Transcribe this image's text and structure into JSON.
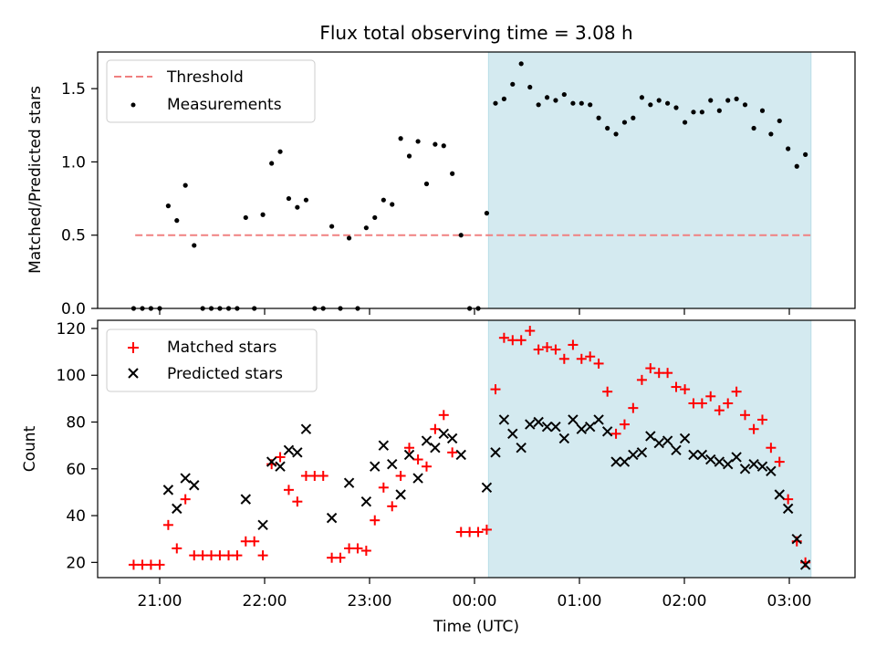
{
  "figure": {
    "title": "Flux total observing time = 3.08 h",
    "xlabel": "Time (UTC)",
    "x_ticks": [
      "21:00",
      "22:00",
      "23:00",
      "00:00",
      "01:00",
      "02:00",
      "03:00"
    ],
    "x_tick_minutes": [
      180,
      240,
      300,
      360,
      420,
      480,
      540
    ]
  },
  "chart_data": [
    {
      "type": "scatter",
      "panel": "top",
      "ylabel": "Matched/Predicted stars",
      "ylim": [
        0,
        1.75
      ],
      "y_ticks": [
        0.0,
        0.5,
        1.0,
        1.5
      ],
      "y_tick_labels": [
        "0.0",
        "0.5",
        "1.0",
        "1.5"
      ],
      "x_unit": "minutes after 18:00 UTC",
      "legend_position": "upper-left",
      "highlight_span": {
        "x_start": 368.0,
        "x_end": 552.4,
        "color": "#d4eaf0"
      },
      "threshold": {
        "name": "Threshold",
        "value": 0.5,
        "x_start": 166.0,
        "x_end": 552.4,
        "color": "#f08080"
      },
      "series": [
        {
          "name": "Measurements",
          "color": "#000000",
          "points": [
            [
              165.1,
              0.0
            ],
            [
              170.1,
              0.0
            ],
            [
              175.0,
              0.0
            ],
            [
              180.0,
              0.0
            ],
            [
              184.9,
              0.7
            ],
            [
              189.8,
              0.6
            ],
            [
              194.7,
              0.84
            ],
            [
              199.7,
              0.43
            ],
            [
              204.6,
              0.0
            ],
            [
              209.5,
              0.0
            ],
            [
              214.4,
              0.0
            ],
            [
              219.4,
              0.0
            ],
            [
              224.3,
              0.0
            ],
            [
              229.2,
              0.62
            ],
            [
              234.1,
              0.0
            ],
            [
              239.0,
              0.64
            ],
            [
              244.0,
              0.99
            ],
            [
              248.9,
              1.07
            ],
            [
              253.8,
              0.75
            ],
            [
              258.7,
              0.69
            ],
            [
              263.7,
              0.74
            ],
            [
              268.6,
              0.0
            ],
            [
              273.5,
              0.0
            ],
            [
              278.4,
              0.56
            ],
            [
              283.3,
              0.0
            ],
            [
              288.3,
              0.48
            ],
            [
              293.2,
              0.0
            ],
            [
              298.1,
              0.55
            ],
            [
              303.0,
              0.62
            ],
            [
              308.0,
              0.74
            ],
            [
              312.9,
              0.71
            ],
            [
              317.8,
              1.16
            ],
            [
              322.7,
              1.04
            ],
            [
              327.7,
              1.14
            ],
            [
              332.6,
              0.85
            ],
            [
              337.5,
              1.12
            ],
            [
              342.4,
              1.11
            ],
            [
              347.3,
              0.92
            ],
            [
              352.3,
              0.5
            ],
            [
              357.2,
              0.0
            ],
            [
              362.1,
              0.0
            ],
            [
              367.0,
              0.65
            ],
            [
              372.0,
              1.4
            ],
            [
              376.9,
              1.43
            ],
            [
              381.8,
              1.53
            ],
            [
              386.7,
              1.67
            ],
            [
              391.7,
              1.51
            ],
            [
              396.6,
              1.39
            ],
            [
              401.5,
              1.44
            ],
            [
              406.4,
              1.42
            ],
            [
              411.3,
              1.46
            ],
            [
              416.3,
              1.4
            ],
            [
              421.2,
              1.4
            ],
            [
              426.1,
              1.39
            ],
            [
              431.0,
              1.3
            ],
            [
              436.0,
              1.23
            ],
            [
              440.9,
              1.19
            ],
            [
              445.8,
              1.27
            ],
            [
              450.7,
              1.3
            ],
            [
              455.7,
              1.44
            ],
            [
              460.6,
              1.39
            ],
            [
              465.5,
              1.42
            ],
            [
              470.4,
              1.4
            ],
            [
              475.3,
              1.37
            ],
            [
              480.3,
              1.27
            ],
            [
              485.2,
              1.34
            ],
            [
              490.1,
              1.34
            ],
            [
              495.0,
              1.42
            ],
            [
              500.0,
              1.35
            ],
            [
              504.9,
              1.42
            ],
            [
              509.8,
              1.43
            ],
            [
              514.7,
              1.39
            ],
            [
              519.7,
              1.23
            ],
            [
              524.6,
              1.35
            ],
            [
              529.5,
              1.19
            ],
            [
              534.4,
              1.28
            ],
            [
              539.3,
              1.09
            ],
            [
              544.3,
              0.97
            ],
            [
              549.2,
              1.05
            ]
          ]
        }
      ]
    },
    {
      "type": "scatter",
      "panel": "bottom",
      "ylabel": "Count",
      "ylim": [
        13.5,
        123.5
      ],
      "y_ticks": [
        20,
        40,
        60,
        80,
        100,
        120
      ],
      "y_tick_labels": [
        "20",
        "40",
        "60",
        "80",
        "100",
        "120"
      ],
      "x_unit": "minutes after 18:00 UTC",
      "legend_position": "upper-left",
      "highlight_span": {
        "x_start": 368.0,
        "x_end": 552.4,
        "color": "#d4eaf0"
      },
      "series": [
        {
          "name": "Matched stars",
          "marker": "+",
          "color": "#ff0000",
          "points": [
            [
              165.1,
              19
            ],
            [
              170.1,
              19
            ],
            [
              175.0,
              19
            ],
            [
              180.0,
              19
            ],
            [
              184.9,
              36
            ],
            [
              189.8,
              26
            ],
            [
              194.7,
              47
            ],
            [
              199.7,
              23
            ],
            [
              204.6,
              23
            ],
            [
              209.5,
              23
            ],
            [
              214.4,
              23
            ],
            [
              219.4,
              23
            ],
            [
              224.3,
              23
            ],
            [
              229.2,
              29
            ],
            [
              234.1,
              29
            ],
            [
              239.0,
              23
            ],
            [
              244.0,
              62
            ],
            [
              248.9,
              65
            ],
            [
              253.8,
              51
            ],
            [
              258.7,
              46
            ],
            [
              263.7,
              57
            ],
            [
              268.6,
              57
            ],
            [
              273.5,
              57
            ],
            [
              278.4,
              22
            ],
            [
              283.3,
              22
            ],
            [
              288.3,
              26
            ],
            [
              293.2,
              26
            ],
            [
              298.1,
              25
            ],
            [
              303.0,
              38
            ],
            [
              308.0,
              52
            ],
            [
              312.9,
              44
            ],
            [
              317.8,
              57
            ],
            [
              322.7,
              69
            ],
            [
              327.7,
              64
            ],
            [
              332.6,
              61
            ],
            [
              337.5,
              77
            ],
            [
              342.4,
              83
            ],
            [
              347.3,
              67
            ],
            [
              352.3,
              33
            ],
            [
              357.2,
              33
            ],
            [
              362.1,
              33
            ],
            [
              367.0,
              34
            ],
            [
              372.0,
              94
            ],
            [
              376.9,
              116
            ],
            [
              381.8,
              115
            ],
            [
              386.7,
              115
            ],
            [
              391.7,
              119
            ],
            [
              396.6,
              111
            ],
            [
              401.5,
              112
            ],
            [
              406.4,
              111
            ],
            [
              411.3,
              107
            ],
            [
              416.3,
              113
            ],
            [
              421.2,
              107
            ],
            [
              426.1,
              108
            ],
            [
              431.0,
              105
            ],
            [
              436.0,
              93
            ],
            [
              440.9,
              75
            ],
            [
              445.8,
              79
            ],
            [
              450.7,
              86
            ],
            [
              455.7,
              98
            ],
            [
              460.6,
              103
            ],
            [
              465.5,
              101
            ],
            [
              470.4,
              101
            ],
            [
              475.3,
              95
            ],
            [
              480.3,
              94
            ],
            [
              485.2,
              88
            ],
            [
              490.1,
              88
            ],
            [
              495.0,
              91
            ],
            [
              500.0,
              85
            ],
            [
              504.9,
              88
            ],
            [
              509.8,
              93
            ],
            [
              514.7,
              83
            ],
            [
              519.7,
              77
            ],
            [
              524.6,
              81
            ],
            [
              529.5,
              69
            ],
            [
              534.4,
              63
            ],
            [
              539.3,
              47
            ],
            [
              544.3,
              29
            ],
            [
              549.2,
              20
            ]
          ]
        },
        {
          "name": "Predicted stars",
          "marker": "x",
          "color": "#000000",
          "points": [
            [
              184.9,
              51
            ],
            [
              189.8,
              43
            ],
            [
              194.7,
              56
            ],
            [
              199.7,
              53
            ],
            [
              229.2,
              47
            ],
            [
              239.0,
              36
            ],
            [
              244.0,
              63
            ],
            [
              248.9,
              61
            ],
            [
              253.8,
              68
            ],
            [
              258.7,
              67
            ],
            [
              263.7,
              77
            ],
            [
              278.4,
              39
            ],
            [
              288.3,
              54
            ],
            [
              298.1,
              46
            ],
            [
              303.0,
              61
            ],
            [
              308.0,
              70
            ],
            [
              312.9,
              62
            ],
            [
              317.8,
              49
            ],
            [
              322.7,
              66
            ],
            [
              327.7,
              56
            ],
            [
              332.6,
              72
            ],
            [
              337.5,
              69
            ],
            [
              342.4,
              75
            ],
            [
              347.3,
              73
            ],
            [
              352.3,
              66
            ],
            [
              367.0,
              52
            ],
            [
              372.0,
              67
            ],
            [
              376.9,
              81
            ],
            [
              381.8,
              75
            ],
            [
              386.7,
              69
            ],
            [
              391.7,
              79
            ],
            [
              396.6,
              80
            ],
            [
              401.5,
              78
            ],
            [
              406.4,
              78
            ],
            [
              411.3,
              73
            ],
            [
              416.3,
              81
            ],
            [
              421.2,
              77
            ],
            [
              426.1,
              78
            ],
            [
              431.0,
              81
            ],
            [
              436.0,
              76
            ],
            [
              440.9,
              63
            ],
            [
              445.8,
              63
            ],
            [
              450.7,
              66
            ],
            [
              455.7,
              67
            ],
            [
              460.6,
              74
            ],
            [
              465.5,
              71
            ],
            [
              470.4,
              72
            ],
            [
              475.3,
              68
            ],
            [
              480.3,
              73
            ],
            [
              485.2,
              66
            ],
            [
              490.1,
              66
            ],
            [
              495.0,
              64
            ],
            [
              500.0,
              63
            ],
            [
              504.9,
              62
            ],
            [
              509.8,
              65
            ],
            [
              514.7,
              60
            ],
            [
              519.7,
              62
            ],
            [
              524.6,
              61
            ],
            [
              529.5,
              59
            ],
            [
              534.4,
              49
            ],
            [
              539.3,
              43
            ],
            [
              544.3,
              30
            ],
            [
              549.2,
              19
            ]
          ]
        }
      ]
    }
  ]
}
